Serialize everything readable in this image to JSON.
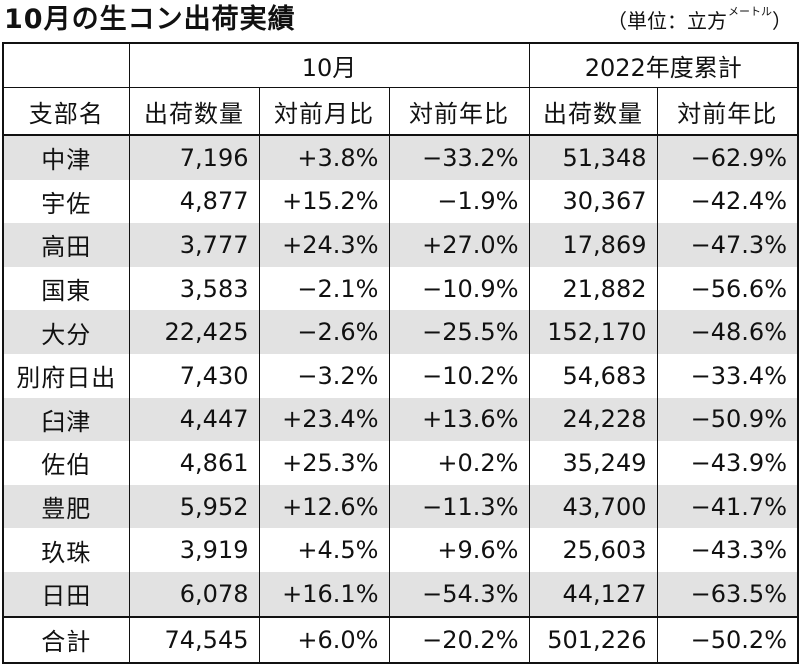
{
  "title": "10月の生コン出荷実績",
  "unit": {
    "prefix": "（単位：立方",
    "small": "メートル",
    "suffix": "）"
  },
  "table": {
    "group_headers": {
      "blank": "",
      "month": "10月",
      "cumulative": "2022年度累計"
    },
    "columns": [
      "支部名",
      "出荷数量",
      "対前月比",
      "対前年比",
      "出荷数量",
      "対前年比"
    ],
    "rows": [
      [
        "中津",
        "7,196",
        "+3.8%",
        "−33.2%",
        "51,348",
        "−62.9%"
      ],
      [
        "宇佐",
        "4,877",
        "+15.2%",
        "−1.9%",
        "30,367",
        "−42.4%"
      ],
      [
        "高田",
        "3,777",
        "+24.3%",
        "+27.0%",
        "17,869",
        "−47.3%"
      ],
      [
        "国東",
        "3,583",
        "−2.1%",
        "−10.9%",
        "21,882",
        "−56.6%"
      ],
      [
        "大分",
        "22,425",
        "−2.6%",
        "−25.5%",
        "152,170",
        "−48.6%"
      ],
      [
        "別府日出",
        "7,430",
        "−3.2%",
        "−10.2%",
        "54,683",
        "−33.4%"
      ],
      [
        "臼津",
        "4,447",
        "+23.4%",
        "+13.6%",
        "24,228",
        "−50.9%"
      ],
      [
        "佐伯",
        "4,861",
        "+25.3%",
        "+0.2%",
        "35,249",
        "−43.9%"
      ],
      [
        "豊肥",
        "5,952",
        "+12.6%",
        "−11.3%",
        "43,700",
        "−41.7%"
      ],
      [
        "玖珠",
        "3,919",
        "+4.5%",
        "+9.6%",
        "25,603",
        "−43.3%"
      ],
      [
        "日田",
        "6,078",
        "+16.1%",
        "−54.3%",
        "44,127",
        "−63.5%"
      ]
    ],
    "total": [
      "合計",
      "74,545",
      "+6.0%",
      "−20.2%",
      "501,226",
      "−50.2%"
    ]
  }
}
